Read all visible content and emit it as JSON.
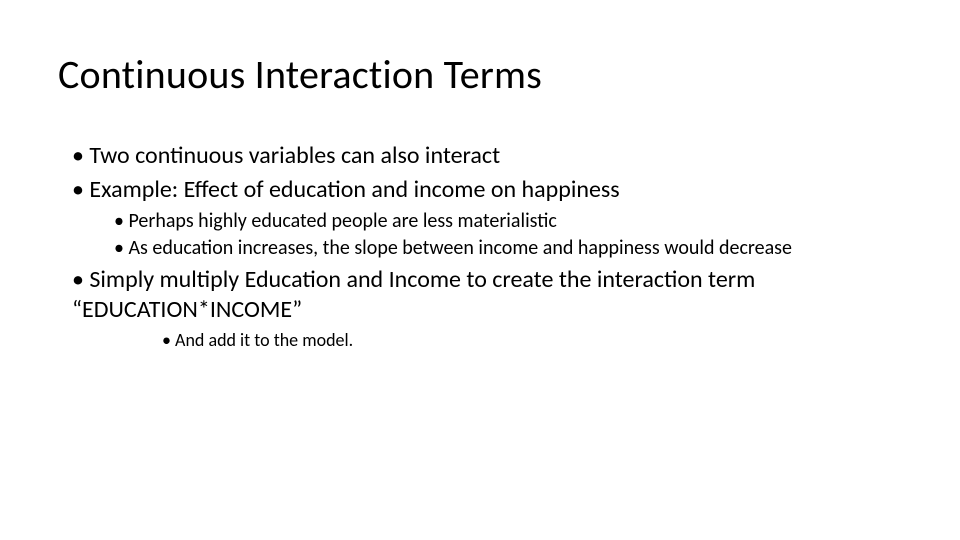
{
  "slide": {
    "title": "Continuous Interaction Terms",
    "bullets": {
      "b1": "Two continuous variables can also interact",
      "b2": "Example:  Effect of education and income on happiness",
      "b2a": "Perhaps highly educated people are less materialistic",
      "b2b": "As education increases, the slope between income and happiness would decrease",
      "b3": "Simply multiply Education and Income to create the interaction term “EDUCATION*INCOME”",
      "b3a": "And add it to the model."
    }
  },
  "style": {
    "background_color": "#ffffff",
    "text_color": "#000000",
    "title_fontsize": 40,
    "level1_fontsize": 24,
    "level2_fontsize": 20,
    "level3_fontsize": 18,
    "font_family": "Calibri"
  }
}
